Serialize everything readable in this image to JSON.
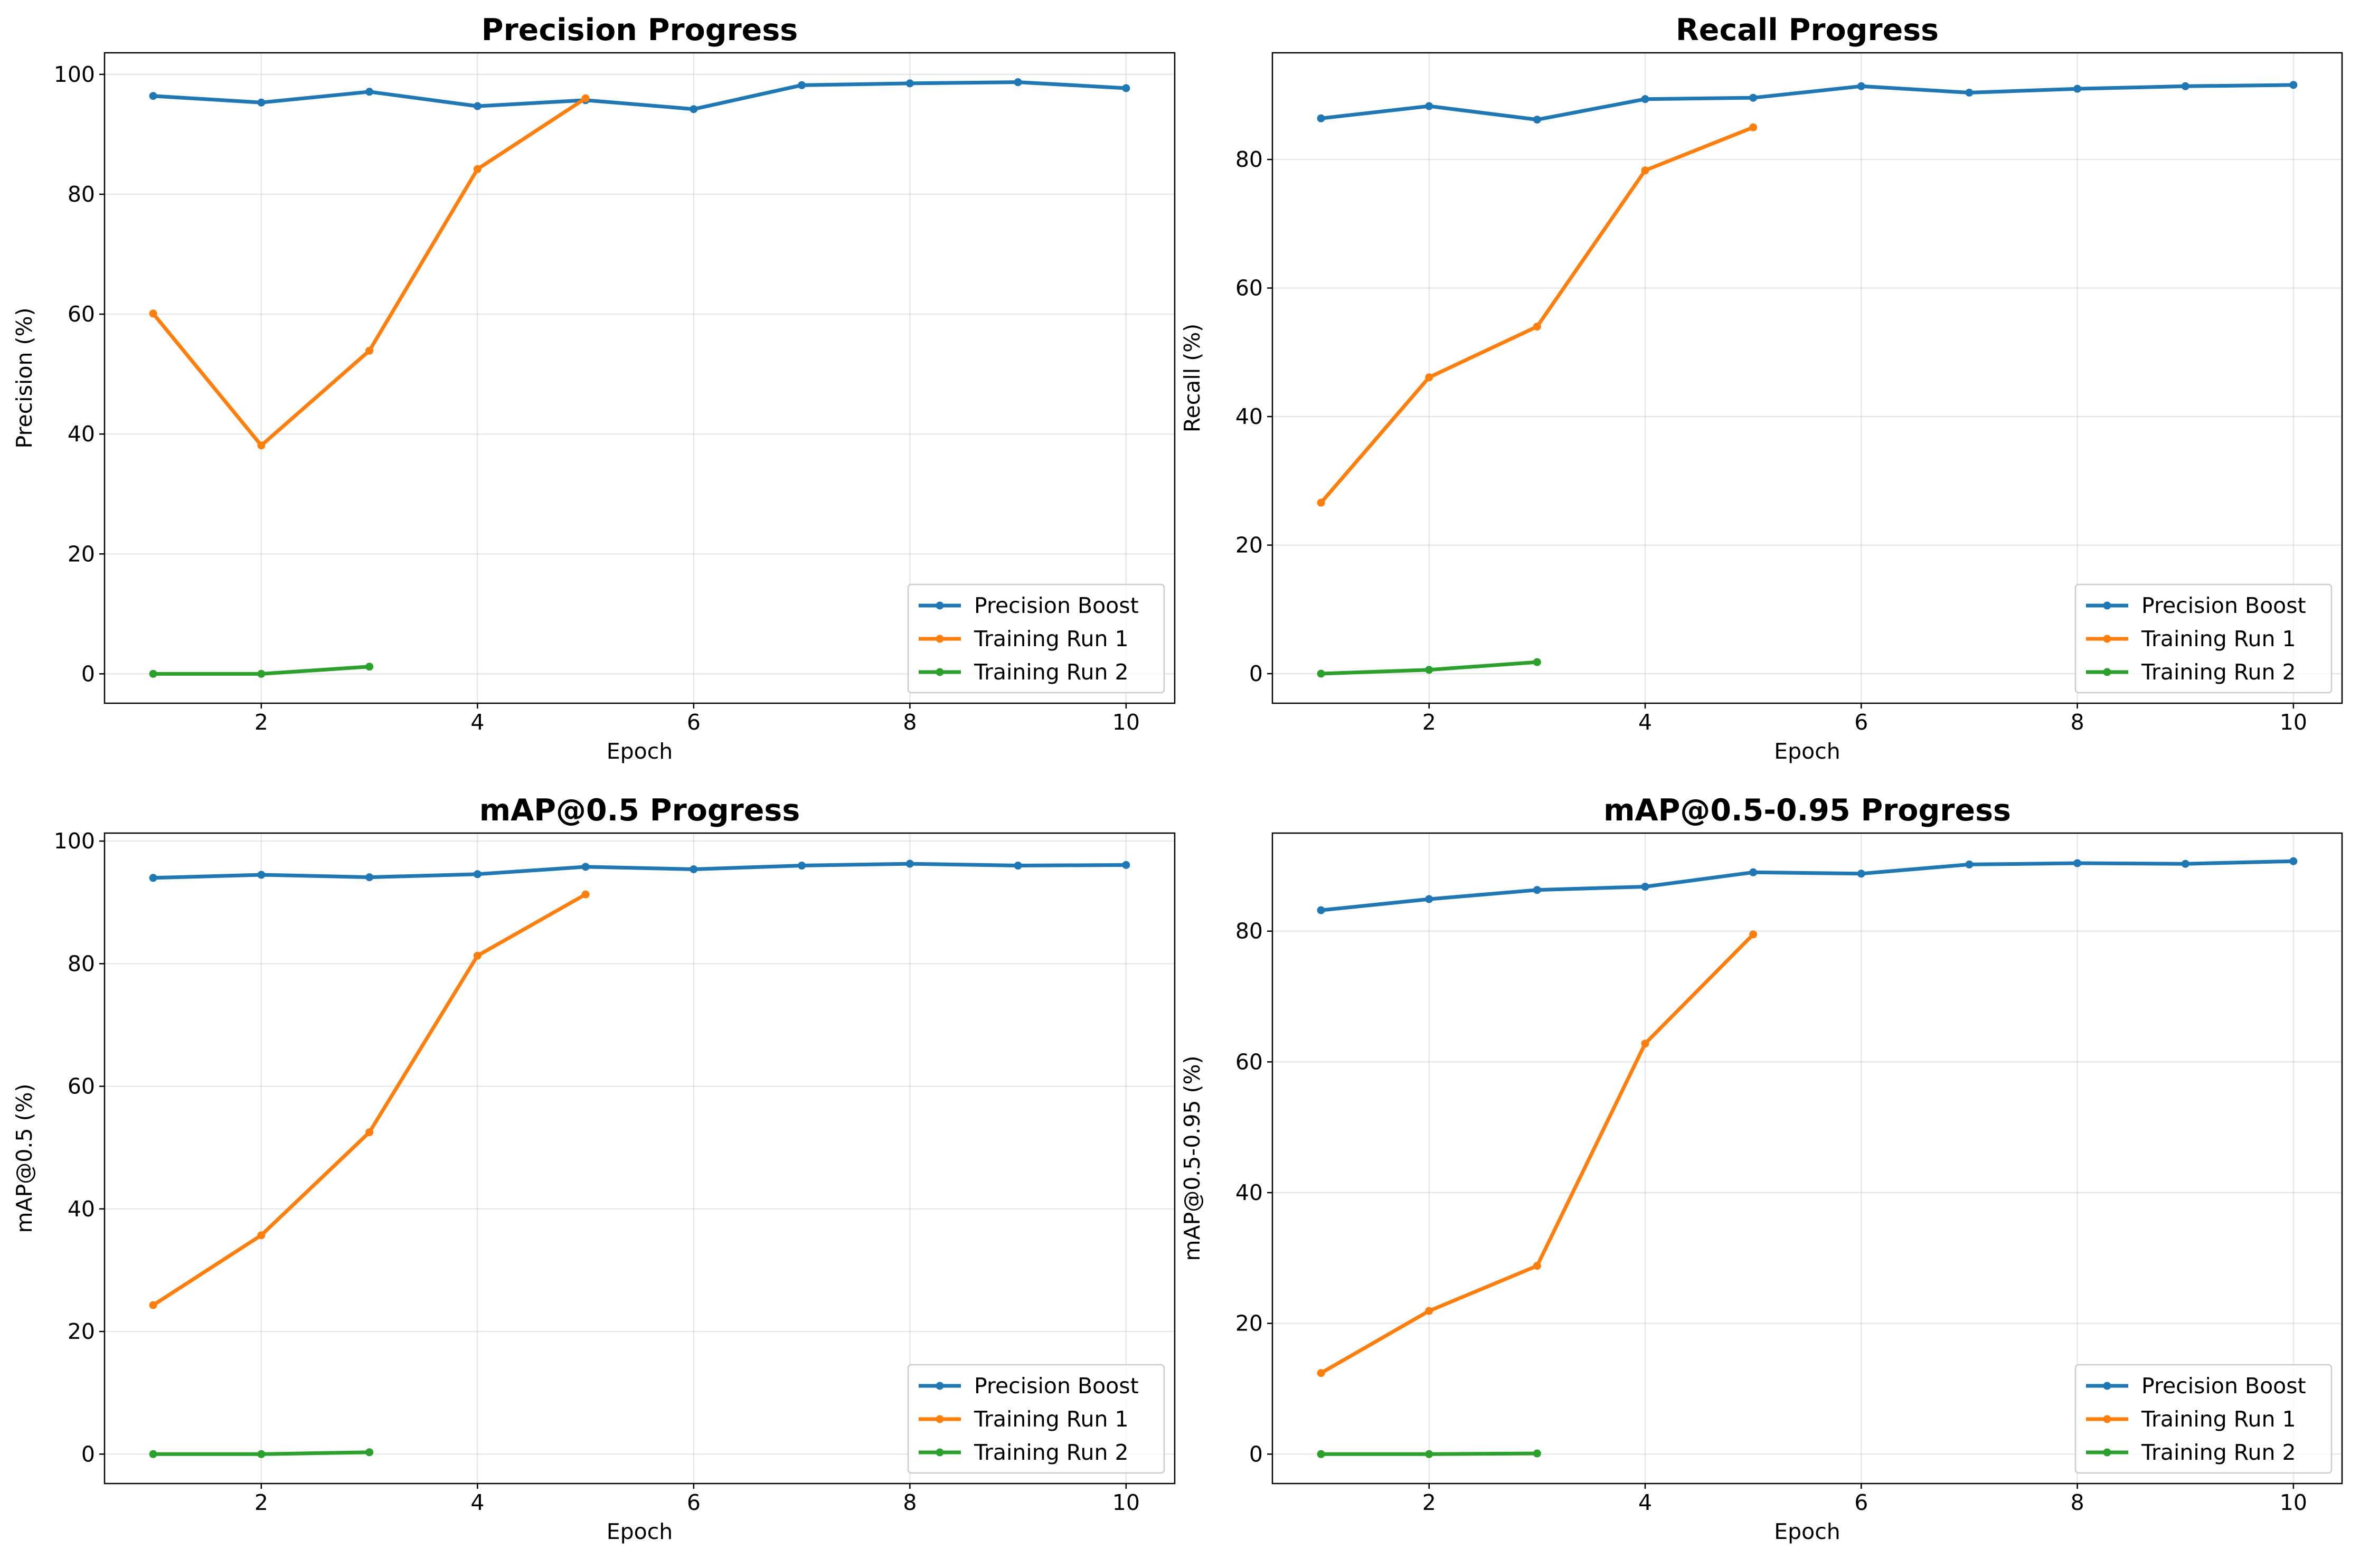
{
  "colors": {
    "Precision Boost": "#1f77b4",
    "Training Run 1": "#ff7f0e",
    "Training Run 2": "#2ca02c"
  },
  "chart_data": [
    {
      "type": "line",
      "title": "Precision Progress",
      "xlabel": "Epoch",
      "ylabel": "Precision (%)",
      "xlim": [
        0.55,
        10.45
      ],
      "ylim": [
        -4.9,
        103.6
      ],
      "xticks": [
        2,
        4,
        6,
        8,
        10
      ],
      "yticks": [
        0,
        20,
        40,
        60,
        80,
        100
      ],
      "grid": true,
      "legend": "lower-right",
      "series": [
        {
          "name": "Precision Boost",
          "x": [
            1,
            2,
            3,
            4,
            5,
            6,
            7,
            8,
            9,
            10
          ],
          "values": [
            96.4,
            95.3,
            97.1,
            94.7,
            95.7,
            94.2,
            98.2,
            98.5,
            98.7,
            97.7
          ]
        },
        {
          "name": "Training Run 1",
          "x": [
            1,
            2,
            3,
            4,
            5
          ],
          "values": [
            60.1,
            38.1,
            53.9,
            84.2,
            96.0
          ]
        },
        {
          "name": "Training Run 2",
          "x": [
            1,
            2,
            3
          ],
          "values": [
            0.0,
            0.0,
            1.2
          ]
        }
      ]
    },
    {
      "type": "line",
      "title": "Recall Progress",
      "xlabel": "Epoch",
      "ylabel": "Recall (%)",
      "xlim": [
        0.55,
        10.45
      ],
      "ylim": [
        -4.6,
        96.6
      ],
      "xticks": [
        2,
        4,
        6,
        8,
        10
      ],
      "yticks": [
        0,
        20,
        40,
        60,
        80
      ],
      "grid": true,
      "legend": "lower-right",
      "series": [
        {
          "name": "Precision Boost",
          "x": [
            1,
            2,
            3,
            4,
            5,
            6,
            7,
            8,
            9,
            10
          ],
          "values": [
            86.4,
            88.3,
            86.2,
            89.4,
            89.6,
            91.4,
            90.4,
            91.0,
            91.4,
            91.6
          ]
        },
        {
          "name": "Training Run 1",
          "x": [
            1,
            2,
            3,
            4,
            5
          ],
          "values": [
            26.6,
            46.1,
            54.0,
            78.3,
            85.0
          ]
        },
        {
          "name": "Training Run 2",
          "x": [
            1,
            2,
            3
          ],
          "values": [
            0.0,
            0.6,
            1.8
          ]
        }
      ]
    },
    {
      "type": "line",
      "title": "mAP@0.5 Progress",
      "xlabel": "Epoch",
      "ylabel": "mAP@0.5 (%)",
      "xlim": [
        0.55,
        10.45
      ],
      "ylim": [
        -4.8,
        101.3
      ],
      "xticks": [
        2,
        4,
        6,
        8,
        10
      ],
      "yticks": [
        0,
        20,
        40,
        60,
        80,
        100
      ],
      "grid": true,
      "legend": "lower-right",
      "series": [
        {
          "name": "Precision Boost",
          "x": [
            1,
            2,
            3,
            4,
            5,
            6,
            7,
            8,
            9,
            10
          ],
          "values": [
            94.0,
            94.5,
            94.1,
            94.6,
            95.8,
            95.4,
            96.0,
            96.3,
            96.0,
            96.1
          ]
        },
        {
          "name": "Training Run 1",
          "x": [
            1,
            2,
            3,
            4,
            5
          ],
          "values": [
            24.3,
            35.7,
            52.5,
            81.3,
            91.3
          ]
        },
        {
          "name": "Training Run 2",
          "x": [
            1,
            2,
            3
          ],
          "values": [
            0.0,
            0.0,
            0.3
          ]
        }
      ]
    },
    {
      "type": "line",
      "title": "mAP@0.5-0.95 Progress",
      "xlabel": "Epoch",
      "ylabel": "mAP@0.5-0.95 (%)",
      "xlim": [
        0.55,
        10.45
      ],
      "ylim": [
        -4.5,
        95.0
      ],
      "xticks": [
        2,
        4,
        6,
        8,
        10
      ],
      "yticks": [
        0,
        20,
        40,
        60,
        80
      ],
      "grid": true,
      "legend": "lower-right",
      "series": [
        {
          "name": "Precision Boost",
          "x": [
            1,
            2,
            3,
            4,
            5,
            6,
            7,
            8,
            9,
            10
          ],
          "values": [
            83.2,
            84.9,
            86.3,
            86.8,
            89.0,
            88.8,
            90.2,
            90.4,
            90.3,
            90.7
          ]
        },
        {
          "name": "Training Run 1",
          "x": [
            1,
            2,
            3,
            4,
            5
          ],
          "values": [
            12.4,
            21.9,
            28.8,
            62.8,
            79.5
          ]
        },
        {
          "name": "Training Run 2",
          "x": [
            1,
            2,
            3
          ],
          "values": [
            0.0,
            0.0,
            0.1
          ]
        }
      ]
    }
  ]
}
